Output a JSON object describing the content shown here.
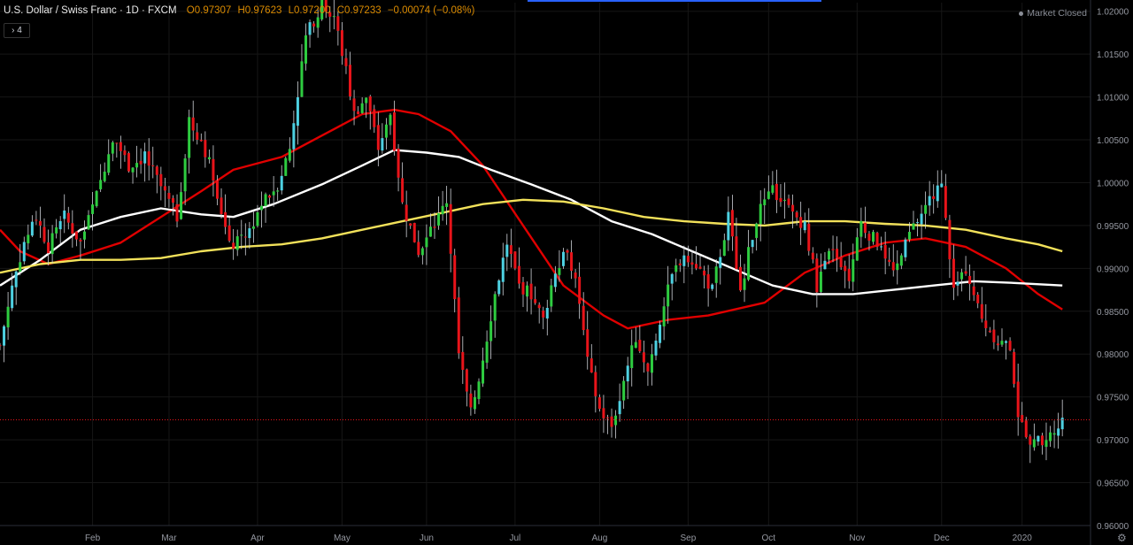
{
  "header": {
    "symbol": "U.S. Dollar / Swiss Franc",
    "interval": "1D",
    "source": "FXCM",
    "open": "O0.97307",
    "high": "H0.97623",
    "low": "L0.97200",
    "close": "C0.97233",
    "change": "−0.00074 (−0.08%)",
    "indicator_count": "4",
    "market_status": "Market Closed"
  },
  "colors": {
    "background": "#000000",
    "up": "#2ecc40",
    "up_alt": "#4dd0e1",
    "down": "#e8141a",
    "ma_red": "#e00000",
    "ma_white": "#ffffff",
    "ma_yellow": "#f2e15a",
    "price_line": "#e8141a",
    "grid": "#161616"
  },
  "chart_data": {
    "type": "candlestick",
    "y_axis": {
      "min": 0.96,
      "max": 1.021,
      "position": "right",
      "tick_labels": [
        "1.02000",
        "1.01500",
        "1.01000",
        "1.00500",
        "1.00000",
        "0.99500",
        "0.99000",
        "0.98500",
        "0.98000",
        "0.97500",
        "0.97000",
        "0.96500",
        "0.96000"
      ]
    },
    "x_axis": {
      "labels": [
        "Feb",
        "Mar",
        "Apr",
        "May",
        "Jun",
        "Jul",
        "Aug",
        "Sep",
        "Oct",
        "Nov",
        "Dec",
        "2020"
      ],
      "label_days": [
        23,
        42,
        64,
        85,
        106,
        128,
        149,
        171,
        191,
        213,
        234,
        254
      ]
    },
    "day_range": [
      0,
      271
    ],
    "last_price": 0.97233,
    "last_price_label": "0.97233",
    "close_path": [
      [
        0,
        0.981
      ],
      [
        3,
        0.988
      ],
      [
        6,
        0.993
      ],
      [
        9,
        0.996
      ],
      [
        12,
        0.9925
      ],
      [
        16,
        0.996
      ],
      [
        20,
        0.993
      ],
      [
        24,
        0.9985
      ],
      [
        28,
        1.0055
      ],
      [
        32,
        1.002
      ],
      [
        36,
        1.003
      ],
      [
        40,
        0.9995
      ],
      [
        44,
        0.996
      ],
      [
        47,
        1.007
      ],
      [
        50,
        1.005
      ],
      [
        53,
        1.001
      ],
      [
        57,
        0.9925
      ],
      [
        61,
        0.9935
      ],
      [
        65,
        0.9975
      ],
      [
        69,
        0.9998
      ],
      [
        72,
        1.004
      ],
      [
        76,
        1.017
      ],
      [
        80,
        1.021
      ],
      [
        83,
        1.0195
      ],
      [
        86,
        1.013
      ],
      [
        88,
        1.008
      ],
      [
        91,
        1.01
      ],
      [
        94,
        1.004
      ],
      [
        97,
        1.008
      ],
      [
        100,
        0.9975
      ],
      [
        104,
        0.992
      ],
      [
        108,
        0.995
      ],
      [
        111,
        0.998
      ],
      [
        114,
        0.98
      ],
      [
        117,
        0.973
      ],
      [
        120,
        0.9795
      ],
      [
        123,
        0.987
      ],
      [
        126,
        0.993
      ],
      [
        129,
        0.988
      ],
      [
        132,
        0.987
      ],
      [
        135,
        0.984
      ],
      [
        138,
        0.99
      ],
      [
        141,
        0.9925
      ],
      [
        144,
        0.986
      ],
      [
        146,
        0.979
      ],
      [
        149,
        0.9735
      ],
      [
        152,
        0.9715
      ],
      [
        155,
        0.977
      ],
      [
        158,
        0.982
      ],
      [
        161,
        0.978
      ],
      [
        164,
        0.984
      ],
      [
        167,
        0.989
      ],
      [
        170,
        0.992
      ],
      [
        173,
        0.9905
      ],
      [
        177,
        0.9875
      ],
      [
        181,
        0.996
      ],
      [
        184,
        0.9875
      ],
      [
        188,
        0.996
      ],
      [
        192,
        0.999
      ],
      [
        196,
        0.997
      ],
      [
        200,
        0.995
      ],
      [
        203,
        0.988
      ],
      [
        207,
        0.9925
      ],
      [
        211,
        0.989
      ],
      [
        214,
        0.995
      ],
      [
        218,
        0.993
      ],
      [
        222,
        0.989
      ],
      [
        226,
        0.994
      ],
      [
        231,
        0.998
      ],
      [
        234,
        0.9995
      ],
      [
        237,
        0.9875
      ],
      [
        240,
        0.99
      ],
      [
        244,
        0.984
      ],
      [
        248,
        0.9815
      ],
      [
        251,
        0.981
      ],
      [
        253,
        0.973
      ],
      [
        256,
        0.969
      ],
      [
        258,
        0.97
      ],
      [
        261,
        0.9705
      ],
      [
        264,
        0.9723
      ]
    ],
    "series": [
      {
        "name": "MA red",
        "color": "#e00000",
        "points": [
          [
            0,
            0.9945
          ],
          [
            5,
            0.992
          ],
          [
            12,
            0.9905
          ],
          [
            20,
            0.9915
          ],
          [
            30,
            0.993
          ],
          [
            40,
            0.996
          ],
          [
            50,
            0.999
          ],
          [
            58,
            1.0015
          ],
          [
            70,
            1.003
          ],
          [
            80,
            1.0055
          ],
          [
            90,
            1.008
          ],
          [
            98,
            1.0085
          ],
          [
            104,
            1.008
          ],
          [
            112,
            1.006
          ],
          [
            120,
            1.002
          ],
          [
            130,
            0.995
          ],
          [
            140,
            0.988
          ],
          [
            150,
            0.9845
          ],
          [
            156,
            0.983
          ],
          [
            166,
            0.984
          ],
          [
            176,
            0.9845
          ],
          [
            190,
            0.986
          ],
          [
            200,
            0.9895
          ],
          [
            210,
            0.9915
          ],
          [
            220,
            0.993
          ],
          [
            230,
            0.9935
          ],
          [
            240,
            0.9925
          ],
          [
            250,
            0.99
          ],
          [
            258,
            0.987
          ],
          [
            264,
            0.9852
          ]
        ]
      },
      {
        "name": "MA white",
        "color": "#ffffff",
        "points": [
          [
            0,
            0.988
          ],
          [
            10,
            0.991
          ],
          [
            20,
            0.9945
          ],
          [
            30,
            0.996
          ],
          [
            40,
            0.997
          ],
          [
            50,
            0.9963
          ],
          [
            58,
            0.996
          ],
          [
            68,
            0.9975
          ],
          [
            80,
            0.9998
          ],
          [
            90,
            1.002
          ],
          [
            98,
            1.0038
          ],
          [
            106,
            1.0035
          ],
          [
            114,
            1.003
          ],
          [
            122,
            1.0015
          ],
          [
            132,
            0.9998
          ],
          [
            142,
            0.998
          ],
          [
            152,
            0.9955
          ],
          [
            162,
            0.994
          ],
          [
            172,
            0.992
          ],
          [
            182,
            0.99
          ],
          [
            192,
            0.988
          ],
          [
            202,
            0.987
          ],
          [
            212,
            0.987
          ],
          [
            222,
            0.9875
          ],
          [
            232,
            0.988
          ],
          [
            242,
            0.9885
          ],
          [
            252,
            0.9883
          ],
          [
            264,
            0.988
          ]
        ]
      },
      {
        "name": "MA yellow",
        "color": "#f2e15a",
        "points": [
          [
            0,
            0.9895
          ],
          [
            10,
            0.9905
          ],
          [
            20,
            0.991
          ],
          [
            30,
            0.991
          ],
          [
            40,
            0.9912
          ],
          [
            50,
            0.992
          ],
          [
            60,
            0.9925
          ],
          [
            70,
            0.9928
          ],
          [
            80,
            0.9935
          ],
          [
            90,
            0.9945
          ],
          [
            100,
            0.9955
          ],
          [
            110,
            0.9965
          ],
          [
            120,
            0.9975
          ],
          [
            130,
            0.998
          ],
          [
            140,
            0.9978
          ],
          [
            150,
            0.997
          ],
          [
            160,
            0.996
          ],
          [
            170,
            0.9955
          ],
          [
            180,
            0.9952
          ],
          [
            190,
            0.995
          ],
          [
            200,
            0.9955
          ],
          [
            210,
            0.9955
          ],
          [
            220,
            0.9952
          ],
          [
            230,
            0.995
          ],
          [
            240,
            0.9945
          ],
          [
            250,
            0.9935
          ],
          [
            258,
            0.9928
          ],
          [
            264,
            0.992
          ]
        ]
      }
    ]
  }
}
